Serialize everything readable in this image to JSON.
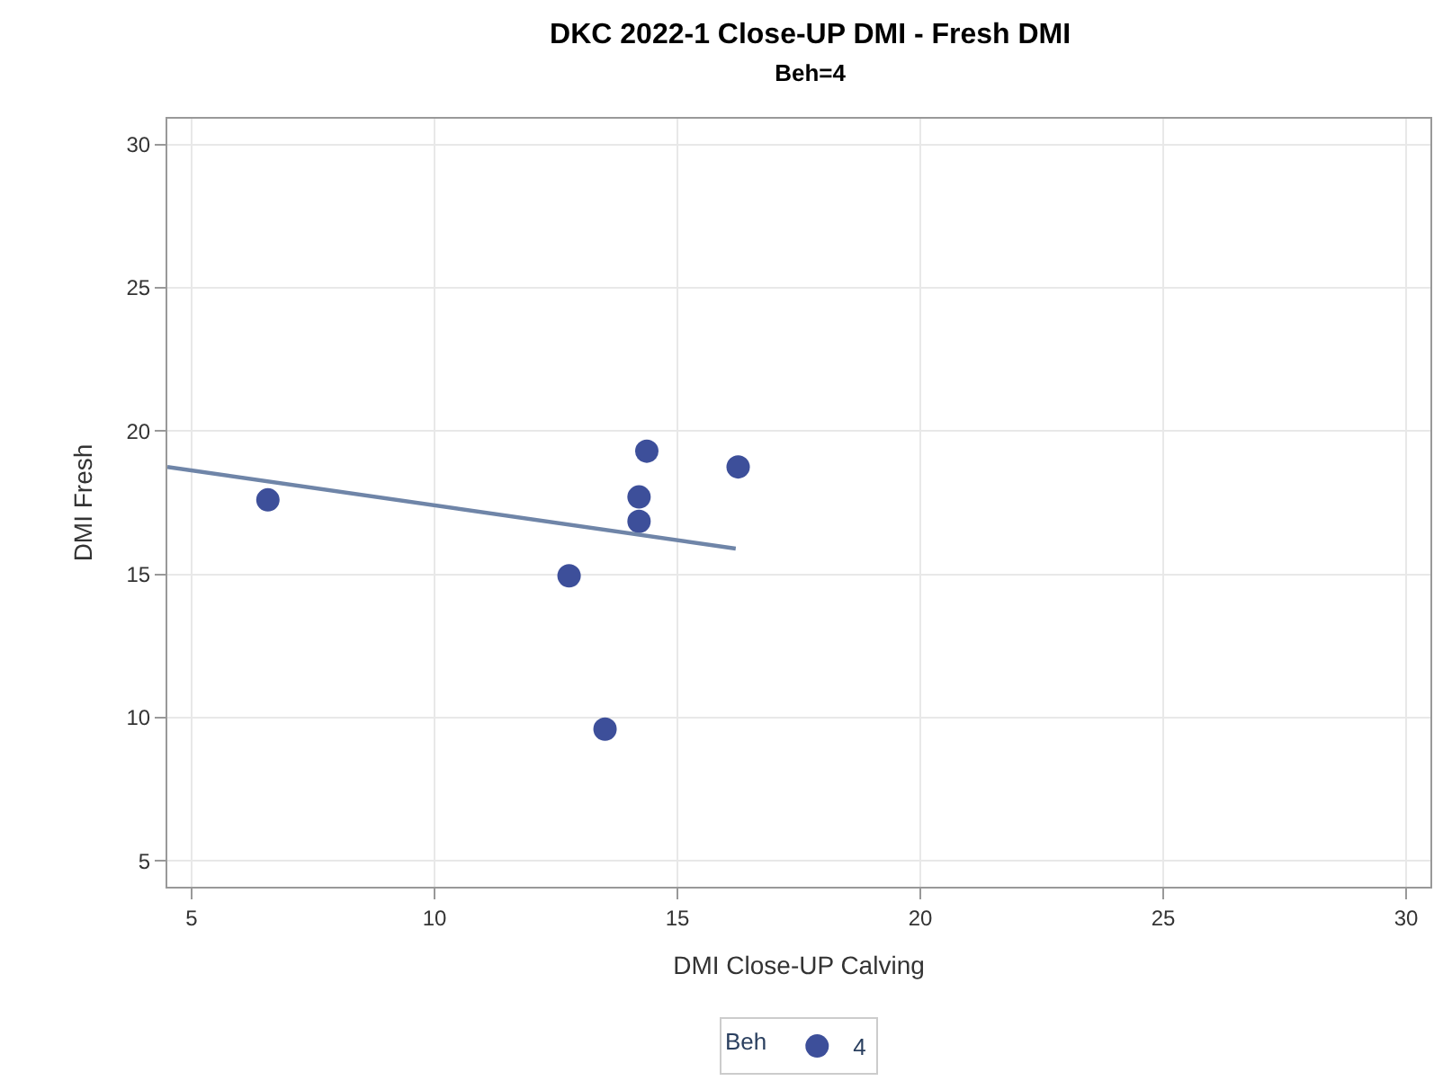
{
  "chart_data": {
    "type": "scatter",
    "title": "DKC 2022-1 Close-UP DMI - Fresh DMI",
    "subtitle": "Beh=4",
    "xlabel": "DMI Close-UP Calving",
    "ylabel": "DMI Fresh",
    "legend_title": "Beh",
    "series": [
      {
        "name": "4",
        "color": "#3d4f9a",
        "marker": "circle",
        "x": [
          6.57,
          12.77,
          13.51,
          14.21,
          14.21,
          14.37,
          16.25
        ],
        "values": [
          17.6,
          14.95,
          9.6,
          17.7,
          16.85,
          19.3,
          18.75
        ]
      },
      {
        "type": "line",
        "color": "#6f85a8",
        "line_style": "solid",
        "x": [
          4.5,
          16.2
        ],
        "values": [
          18.75,
          15.9
        ]
      }
    ],
    "xlim": [
      4.5,
      30.5
    ],
    "xticks": [
      5,
      10,
      15,
      20,
      25,
      30
    ],
    "ylim": [
      4.1,
      30.9
    ],
    "yticks": [
      5,
      10,
      15,
      20,
      25,
      30
    ],
    "grid": true,
    "legend": "bottom"
  }
}
